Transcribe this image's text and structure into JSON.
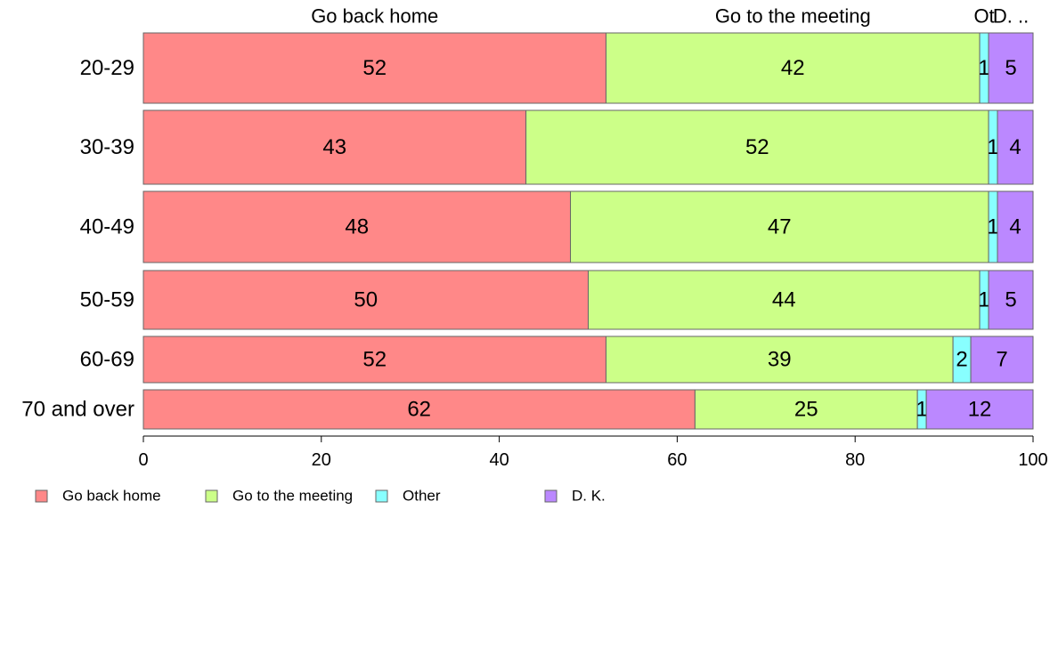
{
  "chart_data": {
    "type": "bar",
    "orientation": "horizontal",
    "stacked": true,
    "categories": [
      "20-29",
      "30-39",
      "40-49",
      "50-59",
      "60-69",
      "70 and over"
    ],
    "series": [
      {
        "name": "Go back home",
        "color": "#ff8888",
        "values": [
          52,
          43,
          48,
          50,
          52,
          62
        ]
      },
      {
        "name": "Go to the meeting",
        "color": "#ccff88",
        "values": [
          42,
          52,
          47,
          44,
          39,
          25
        ]
      },
      {
        "name": "Other",
        "color": "#88ffff",
        "values": [
          1,
          1,
          1,
          1,
          2,
          1
        ]
      },
      {
        "name": "D. K.",
        "color": "#bb88ff",
        "values": [
          5,
          4,
          4,
          5,
          7,
          12
        ]
      }
    ],
    "top_labels": [
      "Go back home",
      "Go to the meeting",
      "Ot",
      "D. .."
    ],
    "x_ticks": [
      "0",
      "20",
      "40",
      "60",
      "80",
      "100"
    ],
    "xlim": [
      0,
      100
    ],
    "legend_position": "bottom-left"
  }
}
